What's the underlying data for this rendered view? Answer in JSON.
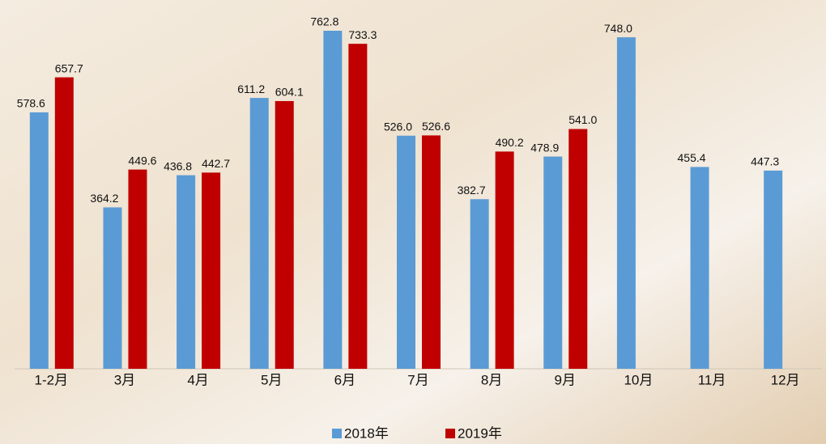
{
  "chart_data": {
    "type": "bar",
    "categories": [
      "1-2月",
      "3月",
      "4月",
      "5月",
      "6月",
      "7月",
      "8月",
      "9月",
      "10月",
      "11月",
      "12月"
    ],
    "series": [
      {
        "name": "2018年",
        "color": "#5b9bd5",
        "values": [
          578.6,
          364.2,
          436.8,
          611.2,
          762.8,
          526.0,
          382.7,
          478.9,
          748.0,
          455.4,
          447.3
        ],
        "value_labels": [
          "578.6",
          "364.2",
          "436.8",
          "611.2",
          "762.8",
          "526.0",
          "382.7",
          "478.9",
          "748.0",
          "455.4",
          "447.3"
        ]
      },
      {
        "name": "2019年",
        "color": "#c00000",
        "values": [
          657.7,
          449.6,
          442.7,
          604.1,
          733.3,
          526.6,
          490.2,
          541.0,
          null,
          null,
          null
        ],
        "value_labels": [
          "657.7",
          "449.6",
          "442.7",
          "604.1",
          "733.3",
          "526.6",
          "490.2",
          "541.0",
          null,
          null,
          null
        ]
      }
    ]
  }
}
